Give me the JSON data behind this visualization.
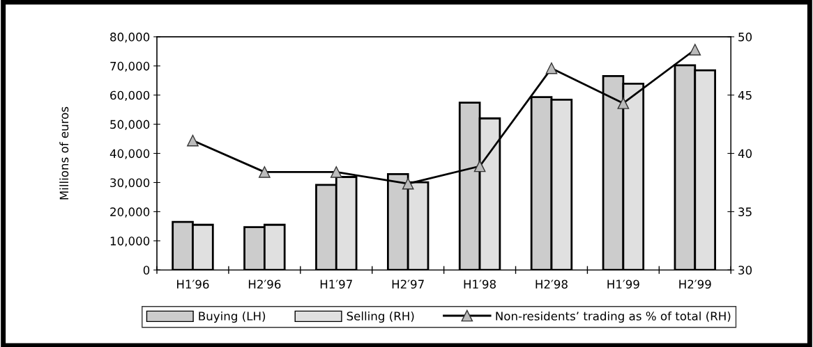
{
  "chart_data": {
    "type": "bar",
    "ylabel": "Millions of euros",
    "categories": [
      "H1′96",
      "H2′96",
      "H1′97",
      "H2′97",
      "H1′98",
      "H2′98",
      "H1′99",
      "H2′99"
    ],
    "series": [
      {
        "name": "Buying (LH)",
        "color": "#cccccc",
        "values": [
          16500,
          14700,
          29200,
          32900,
          57400,
          59300,
          66500,
          70200
        ]
      },
      {
        "name": "Selling (RH)",
        "color": "#e0e0e0",
        "values": [
          15500,
          15500,
          31900,
          30100,
          52000,
          58400,
          63900,
          68500
        ]
      },
      {
        "name": "Non-residents’ trading as % of total (RH)",
        "type": "line",
        "axis": "y2",
        "color": "#000000",
        "marker": "triangle",
        "values": [
          41.1,
          38.4,
          38.4,
          37.4,
          38.9,
          47.3,
          44.3,
          48.9
        ]
      }
    ],
    "ylim": [
      0,
      80000
    ],
    "yticks": [
      {
        "value": 0,
        "label": "0"
      },
      {
        "value": 10000,
        "label": "10,000"
      },
      {
        "value": 20000,
        "label": "20,000"
      },
      {
        "value": 30000,
        "label": "30,000"
      },
      {
        "value": 40000,
        "label": "40,000"
      },
      {
        "value": 50000,
        "label": "50,000"
      },
      {
        "value": 60000,
        "label": "60,000"
      },
      {
        "value": 70000,
        "label": "70,000"
      },
      {
        "value": 80000,
        "label": "80,000"
      }
    ],
    "y2lim": [
      30,
      50
    ],
    "y2ticks": [
      30,
      35,
      40,
      45,
      50
    ],
    "grid": false,
    "legend": "bottom"
  }
}
